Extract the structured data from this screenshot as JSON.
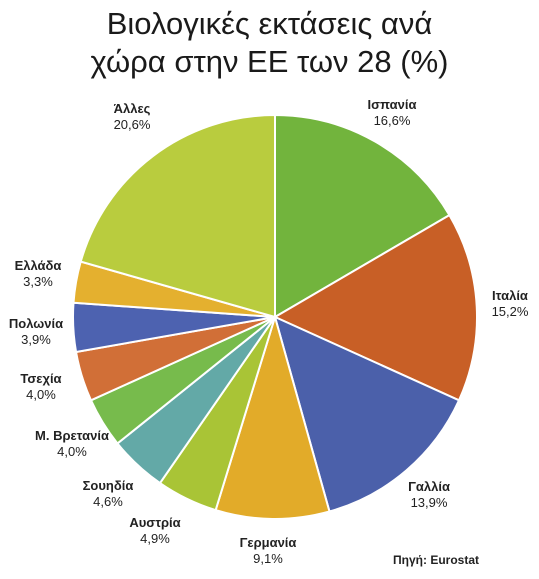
{
  "title_line1": "Βιολογικές εκτάσεις ανά",
  "title_line2": "χώρα στην ΕΕ των 28 (%)",
  "source": "Πηγή: Eurostat",
  "chart_data": {
    "type": "pie",
    "title": "Βιολογικές εκτάσεις ανά χώρα στην ΕΕ των 28 (%)",
    "start": "12 o'clock, clockwise",
    "slices": [
      {
        "label": "Ισπανία",
        "value": 16.6,
        "value_label": "16,6%",
        "color": "#72b43d"
      },
      {
        "label": "Ιταλία",
        "value": 15.2,
        "value_label": "15,2%",
        "color": "#c85f26"
      },
      {
        "label": "Γαλλία",
        "value": 13.9,
        "value_label": "13,9%",
        "color": "#4b60aa"
      },
      {
        "label": "Γερμανία",
        "value": 9.1,
        "value_label": "9,1%",
        "color": "#e2ab29"
      },
      {
        "label": "Αυστρία",
        "value": 4.9,
        "value_label": "4,9%",
        "color": "#a9c436"
      },
      {
        "label": "Σουηδία",
        "value": 4.6,
        "value_label": "4,6%",
        "color": "#63a9a7"
      },
      {
        "label": "Μ. Βρετανία",
        "value": 4.0,
        "value_label": "4,0%",
        "color": "#77bb4c"
      },
      {
        "label": "Τσεχία",
        "value": 4.0,
        "value_label": "4,0%",
        "color": "#d16f37"
      },
      {
        "label": "Πολωνία",
        "value": 3.9,
        "value_label": "3,9%",
        "color": "#4d62b0"
      },
      {
        "label": "Ελλάδα",
        "value": 3.3,
        "value_label": "3,3%",
        "color": "#e4b02f"
      },
      {
        "label": "Άλλες",
        "value": 20.6,
        "value_label": "20,6%",
        "color": "#b9cc3e"
      }
    ]
  }
}
